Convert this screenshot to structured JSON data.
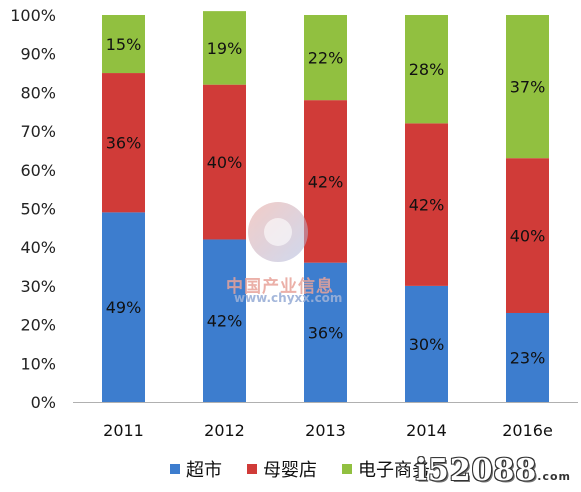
{
  "chart_data": {
    "type": "bar",
    "stacked": true,
    "categories": [
      "2011",
      "2012",
      "2013",
      "2014",
      "2016e"
    ],
    "series": [
      {
        "name": "超市",
        "color": "#3d7dce",
        "values": [
          49,
          42,
          36,
          30,
          23
        ],
        "labels": [
          "49%",
          "42%",
          "36%",
          "30%",
          "23%"
        ]
      },
      {
        "name": "母婴店",
        "color": "#d03b38",
        "values": [
          36,
          40,
          42,
          42,
          40
        ],
        "labels": [
          "36%",
          "40%",
          "42%",
          "42%",
          "40%"
        ]
      },
      {
        "name": "电子商务",
        "color": "#91c040",
        "values": [
          15,
          19,
          22,
          28,
          37
        ],
        "labels": [
          "15%",
          "19%",
          "22%",
          "28%",
          "37%"
        ]
      }
    ],
    "yticks": [
      "0%",
      "10%",
      "20%",
      "30%",
      "40%",
      "50%",
      "60%",
      "70%",
      "80%",
      "90%",
      "100%"
    ],
    "ylim": [
      0,
      100
    ],
    "grid": false,
    "legend_position": "bottom"
  },
  "watermark": {
    "chinese": "中国产业信息",
    "url": "www.chyxx.com"
  },
  "corner_logo": {
    "text": "i52088",
    "suffix": ".com"
  }
}
